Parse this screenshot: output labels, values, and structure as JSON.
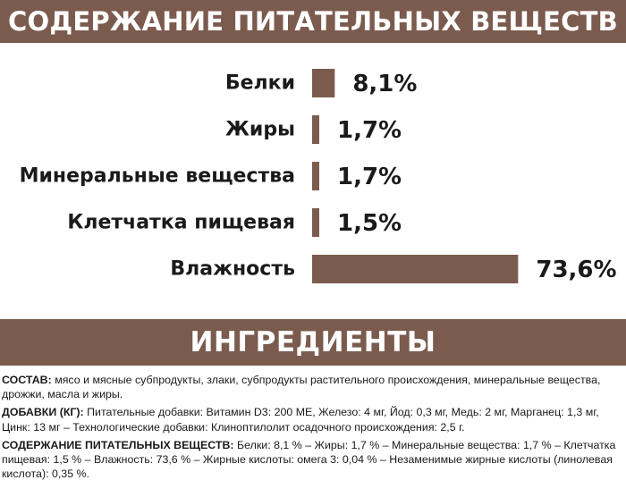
{
  "nutrients_banner": "СОДЕРЖАНИЕ ПИТАТЕЛЬНЫХ ВЕЩЕСТВ",
  "ingredients_banner": "ИНГРЕДИЕНТЫ",
  "colors": {
    "banner_bg": "#7b5b4e",
    "bar": "#7b5b4e",
    "text": "#1a1a1a"
  },
  "chart_data": {
    "type": "bar",
    "orientation": "horizontal",
    "categories": [
      "Белки",
      "Жиры",
      "Минеральные вещества",
      "Клетчатка пищевая",
      "Влажность"
    ],
    "values": [
      8.1,
      1.7,
      1.7,
      1.5,
      73.6
    ],
    "value_labels": [
      "8,1%",
      "1,7%",
      "1,7%",
      "1,5%",
      "73,6%"
    ],
    "unit": "%",
    "grid": false,
    "legend": "none"
  },
  "ingredients": {
    "composition_label": "СОСТАВ:",
    "composition_text": "мясо и мясные субпродукты, злаки, субпродукты растительного происхождения, минеральные вещества, дрожжи, масла и жиры.",
    "additives_label": "ДОБАВКИ (КГ):",
    "additives_text": "Питательные добавки: Витамин D3: 200 МЕ, Железо: 4 мг, Йод: 0,3 мг, Медь: 2 мг, Марганец: 1,3 мг, Цинк: 13 мг – Технологические добавки: Клиноптилолит осадочного происхождения: 2,5 г.",
    "nutrients_label": "СОДЕРЖАНИЕ ПИТАТЕЛЬНЫХ ВЕЩЕСТВ:",
    "nutrients_text": "Белки: 8,1 % – Жиры: 1,7 % – Минеральные вещества: 1,7 % – Клетчатка пищевая: 1,5 % – Влажность: 73,6 % – Жирные кислоты: омега 3: 0,04 % – Незаменимые жирные кислоты (линолевая кислота): 0,35 %."
  }
}
